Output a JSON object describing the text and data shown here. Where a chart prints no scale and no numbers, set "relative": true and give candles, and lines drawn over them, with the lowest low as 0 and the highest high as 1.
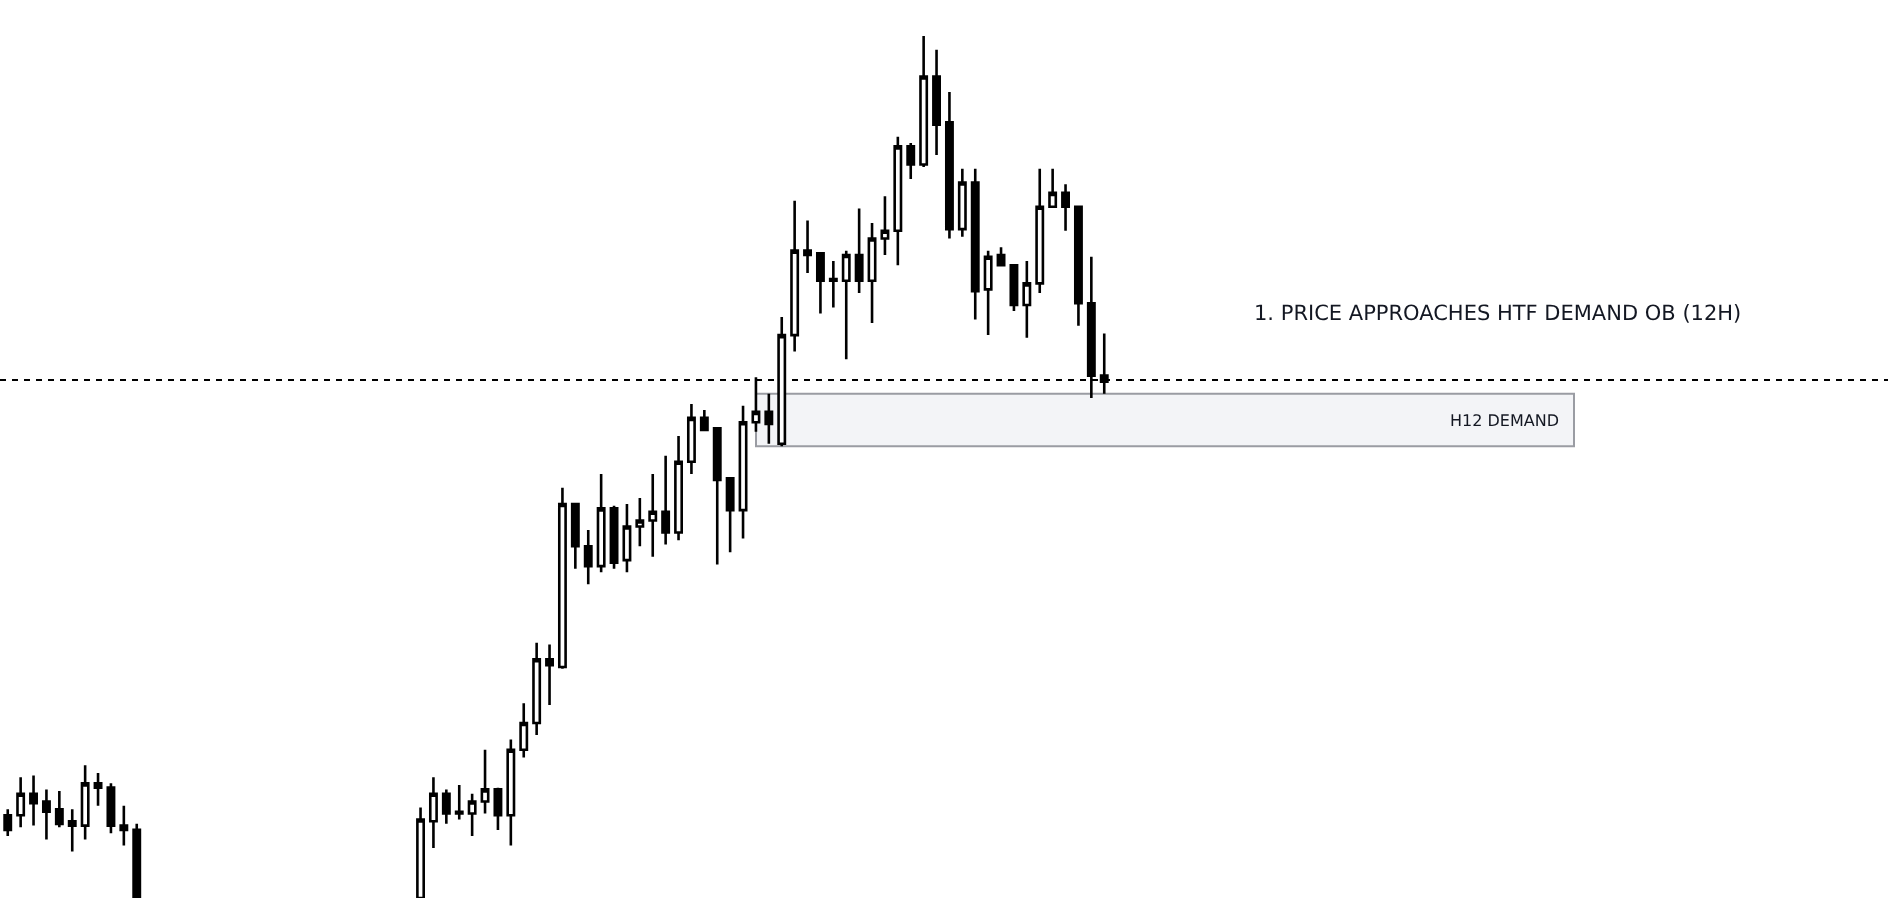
{
  "chart_data": {
    "type": "candlestick",
    "relative": true,
    "categories": [
      null,
      null,
      null,
      null,
      null,
      null,
      null,
      null,
      null,
      null,
      null,
      null,
      null,
      null,
      null,
      null,
      null,
      null,
      null,
      null,
      null,
      null,
      null,
      null,
      null,
      null,
      null,
      null,
      null,
      null,
      null,
      null,
      null,
      null,
      null,
      null,
      null,
      null,
      null,
      null,
      null,
      null,
      null,
      null,
      null,
      null,
      null,
      null,
      null,
      null,
      null,
      null,
      null,
      null,
      null,
      null,
      null,
      null,
      null,
      null,
      null,
      null,
      null,
      null,
      null,
      null,
      null,
      null,
      null,
      null,
      null,
      null,
      null,
      null,
      null,
      null,
      null,
      null,
      null,
      null,
      null,
      null,
      null,
      null,
      null,
      null
    ],
    "ohlc": [
      [
        0.096,
        0.103,
        0.072,
        0.079
      ],
      [
        0.096,
        0.14,
        0.082,
        0.121
      ],
      [
        0.121,
        0.142,
        0.084,
        0.11
      ],
      [
        0.112,
        0.126,
        0.068,
        0.1
      ],
      [
        0.103,
        0.124,
        0.082,
        0.086
      ],
      [
        0.089,
        0.103,
        0.054,
        0.084
      ],
      [
        0.084,
        0.154,
        0.068,
        0.133
      ],
      [
        0.133,
        0.145,
        0.107,
        0.128
      ],
      [
        0.128,
        0.133,
        0.075,
        0.084
      ],
      [
        0.084,
        0.107,
        0.061,
        0.079
      ],
      [
        0.079,
        0.086,
        0,
        0
      ],
      null,
      null,
      null,
      null,
      null,
      null,
      null,
      null,
      null,
      null,
      null,
      null,
      null,
      null,
      null,
      null,
      null,
      null,
      null,
      null,
      null,
      [
        0,
        0.105,
        0,
        0.091
      ],
      [
        0.089,
        0.14,
        0.058,
        0.121
      ],
      [
        0.121,
        0.126,
        0.086,
        0.098
      ],
      [
        0.1,
        0.131,
        0.091,
        0.098
      ],
      [
        0.098,
        0.121,
        0.072,
        0.112
      ],
      [
        0.112,
        0.172,
        0.098,
        0.126
      ],
      [
        0.126,
        0.128,
        0.079,
        0.096
      ],
      [
        0.096,
        0.184,
        0.061,
        0.172
      ],
      [
        0.172,
        0.226,
        0.163,
        0.203
      ],
      [
        0.203,
        0.296,
        0.189,
        0.277
      ],
      [
        0.277,
        0.294,
        0.224,
        0.27
      ],
      [
        0.268,
        0.476,
        0.266,
        0.457
      ],
      [
        0.457,
        0.457,
        0.382,
        0.408
      ],
      [
        0.408,
        0.427,
        0.364,
        0.385
      ],
      [
        0.385,
        0.492,
        0.378,
        0.452
      ],
      [
        0.452,
        0.455,
        0.382,
        0.389
      ],
      [
        0.392,
        0.457,
        0.378,
        0.431
      ],
      [
        0.431,
        0.464,
        0.408,
        0.438
      ],
      [
        0.438,
        0.492,
        0.396,
        0.448
      ],
      [
        0.448,
        0.513,
        0.41,
        0.424
      ],
      [
        0.424,
        0.536,
        0.415,
        0.506
      ],
      [
        0.506,
        0.573,
        0.492,
        0.557
      ],
      [
        0.557,
        0.566,
        0.543,
        0.543
      ],
      [
        0.545,
        0.545,
        0.387,
        0.485
      ],
      [
        0.487,
        0.487,
        0.401,
        0.45
      ],
      [
        0.45,
        0.571,
        0.417,
        0.552
      ],
      [
        0.552,
        0.604,
        0.541,
        0.564
      ],
      [
        0.564,
        0.585,
        0.527,
        0.55
      ],
      [
        0.527,
        0.674,
        0.524,
        0.653
      ],
      [
        0.653,
        0.809,
        0.634,
        0.751
      ],
      [
        0.746,
        0.786,
        0.725,
        0.751
      ],
      [
        0.748,
        0.748,
        0.678,
        0.716
      ],
      [
        0.718,
        0.739,
        0.685,
        0.716
      ],
      [
        0.716,
        0.751,
        0.625,
        0.746
      ],
      [
        0.746,
        0.8,
        0.702,
        0.716
      ],
      [
        0.716,
        0.783,
        0.667,
        0.765
      ],
      [
        0.765,
        0.814,
        0.746,
        0.774
      ],
      [
        0.774,
        0.883,
        0.734,
        0.872
      ],
      [
        0.872,
        0.876,
        0.834,
        0.851
      ],
      [
        0.851,
        1,
        0.848,
        0.953
      ],
      [
        0.953,
        0.984,
        0.862,
        0.897
      ],
      [
        0.9,
        0.935,
        0.765,
        0.776
      ],
      [
        0.776,
        0.846,
        0.767,
        0.83
      ],
      [
        0.83,
        0.846,
        0.671,
        0.704
      ],
      [
        0.706,
        0.751,
        0.653,
        0.744
      ],
      [
        0.746,
        0.755,
        0.734,
        0.734
      ],
      [
        0.734,
        0.734,
        0.681,
        0.688
      ],
      [
        0.688,
        0.739,
        0.65,
        0.713
      ],
      [
        0.713,
        0.846,
        0.702,
        0.802
      ],
      [
        0.802,
        0.846,
        0.802,
        0.818
      ],
      [
        0.818,
        0.828,
        0.774,
        0.802
      ],
      [
        0.802,
        0.802,
        0.664,
        0.69
      ],
      [
        0.69,
        0.744,
        0.58,
        0.606
      ],
      [
        0.606,
        0.655,
        0.585,
        0.599
      ]
    ],
    "ref_lines": [
      {
        "axis": "y",
        "value": 0.601,
        "color": "#000000",
        "line_style": "dotted"
      }
    ],
    "bands": [
      {
        "axis": "y",
        "from": 0.524,
        "to": 0.585,
        "label": "H12 DEMAND",
        "color": "#f3f4f7"
      }
    ],
    "annotations": [
      "1. PRICE APPROACHES HTF DEMAND OB (12H)"
    ],
    "legend": false
  }
}
